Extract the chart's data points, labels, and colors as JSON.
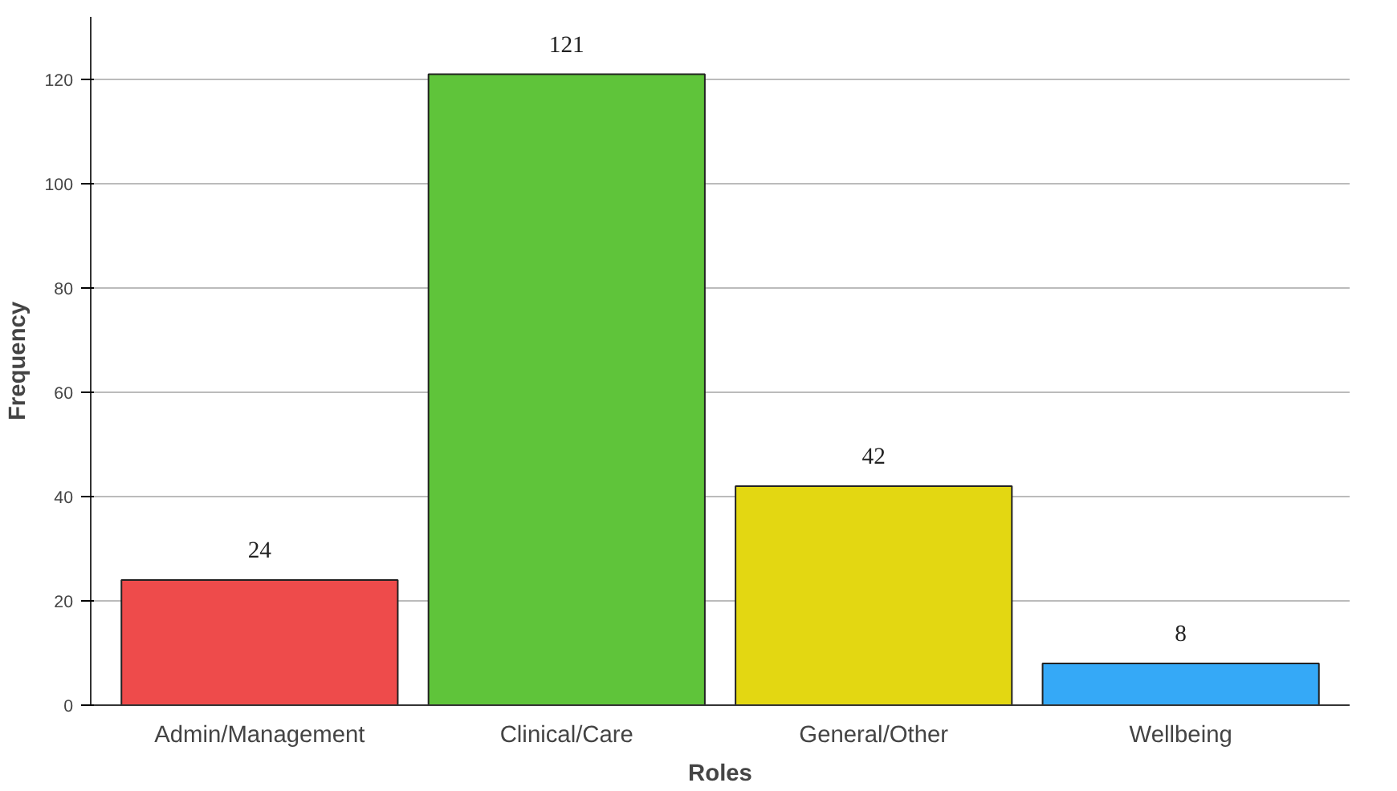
{
  "chart_data": {
    "type": "bar",
    "xlabel": "Roles",
    "ylabel": "Frequency",
    "categories": [
      "Admin/Management",
      "Clinical/Care",
      "General/Other",
      "Wellbeing"
    ],
    "values": [
      24,
      121,
      42,
      8
    ],
    "colors": [
      "#ee4b4b",
      "#5fc43a",
      "#e3d712",
      "#35a9f7"
    ],
    "ylim": [
      0,
      132
    ],
    "yticks": [
      0,
      20,
      40,
      60,
      80,
      100,
      120
    ],
    "grid": "y",
    "data_labels": true
  }
}
